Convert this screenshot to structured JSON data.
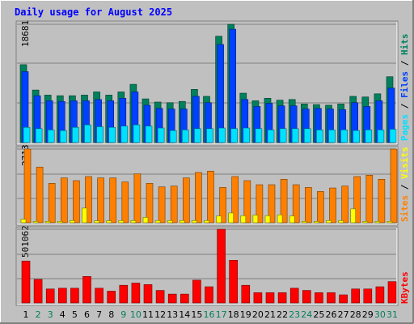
{
  "chart_data": [
    {
      "type": "bar",
      "panel": "hits-files-pages",
      "title": "Daily usage for August 2025",
      "categories": [
        "1",
        "2",
        "3",
        "4",
        "5",
        "6",
        "7",
        "8",
        "9",
        "10",
        "11",
        "12",
        "13",
        "14",
        "15",
        "16",
        "17",
        "18",
        "19",
        "20",
        "21",
        "22",
        "23",
        "24",
        "25",
        "26",
        "27",
        "28",
        "29",
        "30",
        "31"
      ],
      "weekend_categories": [
        "2",
        "3",
        "9",
        "10",
        "16",
        "17",
        "23",
        "24",
        "30",
        "31"
      ],
      "ymax_label": "18681",
      "ylim": [
        0,
        18681
      ],
      "series": [
        {
          "name": "Hits",
          "color": "#00805c",
          "values": [
            12300,
            8300,
            7500,
            7400,
            7400,
            7500,
            8000,
            7500,
            8000,
            9200,
            6900,
            6400,
            6300,
            6500,
            8400,
            7300,
            16800,
            18681,
            7800,
            6600,
            7000,
            6700,
            6800,
            6100,
            6000,
            5900,
            6100,
            7300,
            7200,
            7700,
            10400
          ]
        },
        {
          "name": "Files",
          "color": "#0040ff",
          "values": [
            11200,
            7400,
            6600,
            6500,
            6600,
            6600,
            6800,
            6600,
            7000,
            8000,
            5900,
            5400,
            5300,
            5300,
            7300,
            6300,
            15500,
            17900,
            6800,
            5700,
            6200,
            5800,
            5800,
            5300,
            5400,
            5300,
            5200,
            6300,
            5700,
            6600,
            8600
          ]
        },
        {
          "name": "Pages",
          "color": "#00e0ff",
          "values": [
            2400,
            2200,
            2000,
            1900,
            2400,
            2800,
            2500,
            2400,
            2600,
            2800,
            2600,
            2300,
            1900,
            2000,
            2200,
            2200,
            2300,
            2200,
            2300,
            2200,
            2000,
            2200,
            2200,
            2200,
            2000,
            2000,
            2000,
            1900,
            2000,
            2000,
            2100
          ]
        }
      ]
    },
    {
      "type": "bar",
      "panel": "visits-sites",
      "categories": [
        "1",
        "2",
        "3",
        "4",
        "5",
        "6",
        "7",
        "8",
        "9",
        "10",
        "11",
        "12",
        "13",
        "14",
        "15",
        "16",
        "17",
        "18",
        "19",
        "20",
        "21",
        "22",
        "23",
        "24",
        "25",
        "26",
        "27",
        "28",
        "29",
        "30",
        "31"
      ],
      "ymax_label": "2713",
      "ylim": [
        0,
        2713
      ],
      "series": [
        {
          "name": "Visits",
          "color": "#ffff00",
          "values": [
            130,
            50,
            50,
            50,
            80,
            540,
            70,
            70,
            80,
            80,
            200,
            80,
            80,
            80,
            80,
            80,
            250,
            360,
            260,
            280,
            260,
            290,
            250,
            50,
            50,
            80,
            80,
            510,
            50,
            50,
            50
          ]
        },
        {
          "name": "Sites",
          "color": "#ff8000",
          "values": [
            2713,
            2050,
            1450,
            1650,
            1550,
            1700,
            1650,
            1650,
            1500,
            1800,
            1450,
            1320,
            1350,
            1650,
            1850,
            1900,
            1300,
            1700,
            1550,
            1400,
            1400,
            1600,
            1400,
            1300,
            1150,
            1280,
            1350,
            1700,
            1750,
            1600,
            2713
          ]
        }
      ]
    },
    {
      "type": "bar",
      "panel": "kbytes",
      "categories": [
        "1",
        "2",
        "3",
        "4",
        "5",
        "6",
        "7",
        "8",
        "9",
        "10",
        "11",
        "12",
        "13",
        "14",
        "15",
        "16",
        "17",
        "18",
        "19",
        "20",
        "21",
        "22",
        "23",
        "24",
        "25",
        "26",
        "27",
        "28",
        "29",
        "30",
        "31"
      ],
      "ymax_label": "501062",
      "ylim": [
        0,
        501062
      ],
      "series": [
        {
          "name": "KBytes",
          "color": "#ff0000",
          "values": [
            285000,
            160000,
            95000,
            100000,
            100000,
            180000,
            100000,
            80000,
            120000,
            135000,
            125000,
            85000,
            60000,
            60000,
            155000,
            110000,
            501062,
            290000,
            120000,
            70000,
            70000,
            70000,
            100000,
            85000,
            70000,
            70000,
            55000,
            95000,
            95000,
            110000,
            145000
          ]
        }
      ]
    }
  ]
}
